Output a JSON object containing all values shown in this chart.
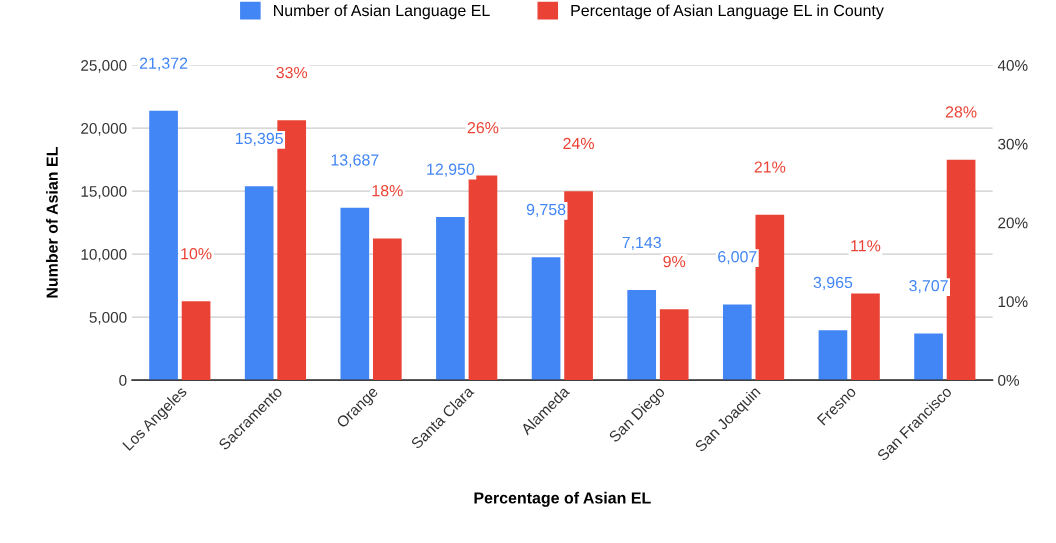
{
  "chart_data": {
    "type": "bar",
    "xlabel": "Percentage of Asian EL",
    "ylabel": "Number of Asian EL",
    "categories": [
      "Los Angeles",
      "Sacramento",
      "Orange",
      "Santa Clara",
      "Alameda",
      "San Diego",
      "San Joaquin",
      "Fresno",
      "San Francisco"
    ],
    "series": [
      {
        "name": "Number of Asian Language EL",
        "color": "#4285f4",
        "values": [
          21372,
          15395,
          13687,
          12950,
          9758,
          7143,
          6007,
          3965,
          3707
        ],
        "value_labels": [
          "21,372",
          "15,395",
          "13,687",
          "12,950",
          "9,758",
          "7,143",
          "6,007",
          "3,965",
          "3,707"
        ]
      },
      {
        "name": "Percentage of Asian Language EL in County",
        "color": "#ea4335",
        "axis": "y2",
        "values": [
          10,
          33,
          18,
          26,
          24,
          9,
          21,
          11,
          28
        ],
        "value_labels": [
          "10%",
          "33%",
          "18%",
          "26%",
          "24%",
          "9%",
          "21%",
          "11%",
          "28%"
        ]
      }
    ],
    "ylim": [
      0,
      25000
    ],
    "yticks": [
      {
        "value": 0,
        "label": "0"
      },
      {
        "value": 5000,
        "label": "5,000"
      },
      {
        "value": 10000,
        "label": "10,000"
      },
      {
        "value": 15000,
        "label": "15,000"
      },
      {
        "value": 20000,
        "label": "20,000"
      },
      {
        "value": 25000,
        "label": "25,000"
      }
    ],
    "y2lim": [
      0,
      40
    ],
    "y2ticks": [
      {
        "value": 0,
        "label": "0%"
      },
      {
        "value": 10,
        "label": "10%"
      },
      {
        "value": 20,
        "label": "20%"
      },
      {
        "value": 30,
        "label": "30%"
      },
      {
        "value": 40,
        "label": "40%"
      }
    ],
    "grid": "y",
    "legend": "top"
  }
}
